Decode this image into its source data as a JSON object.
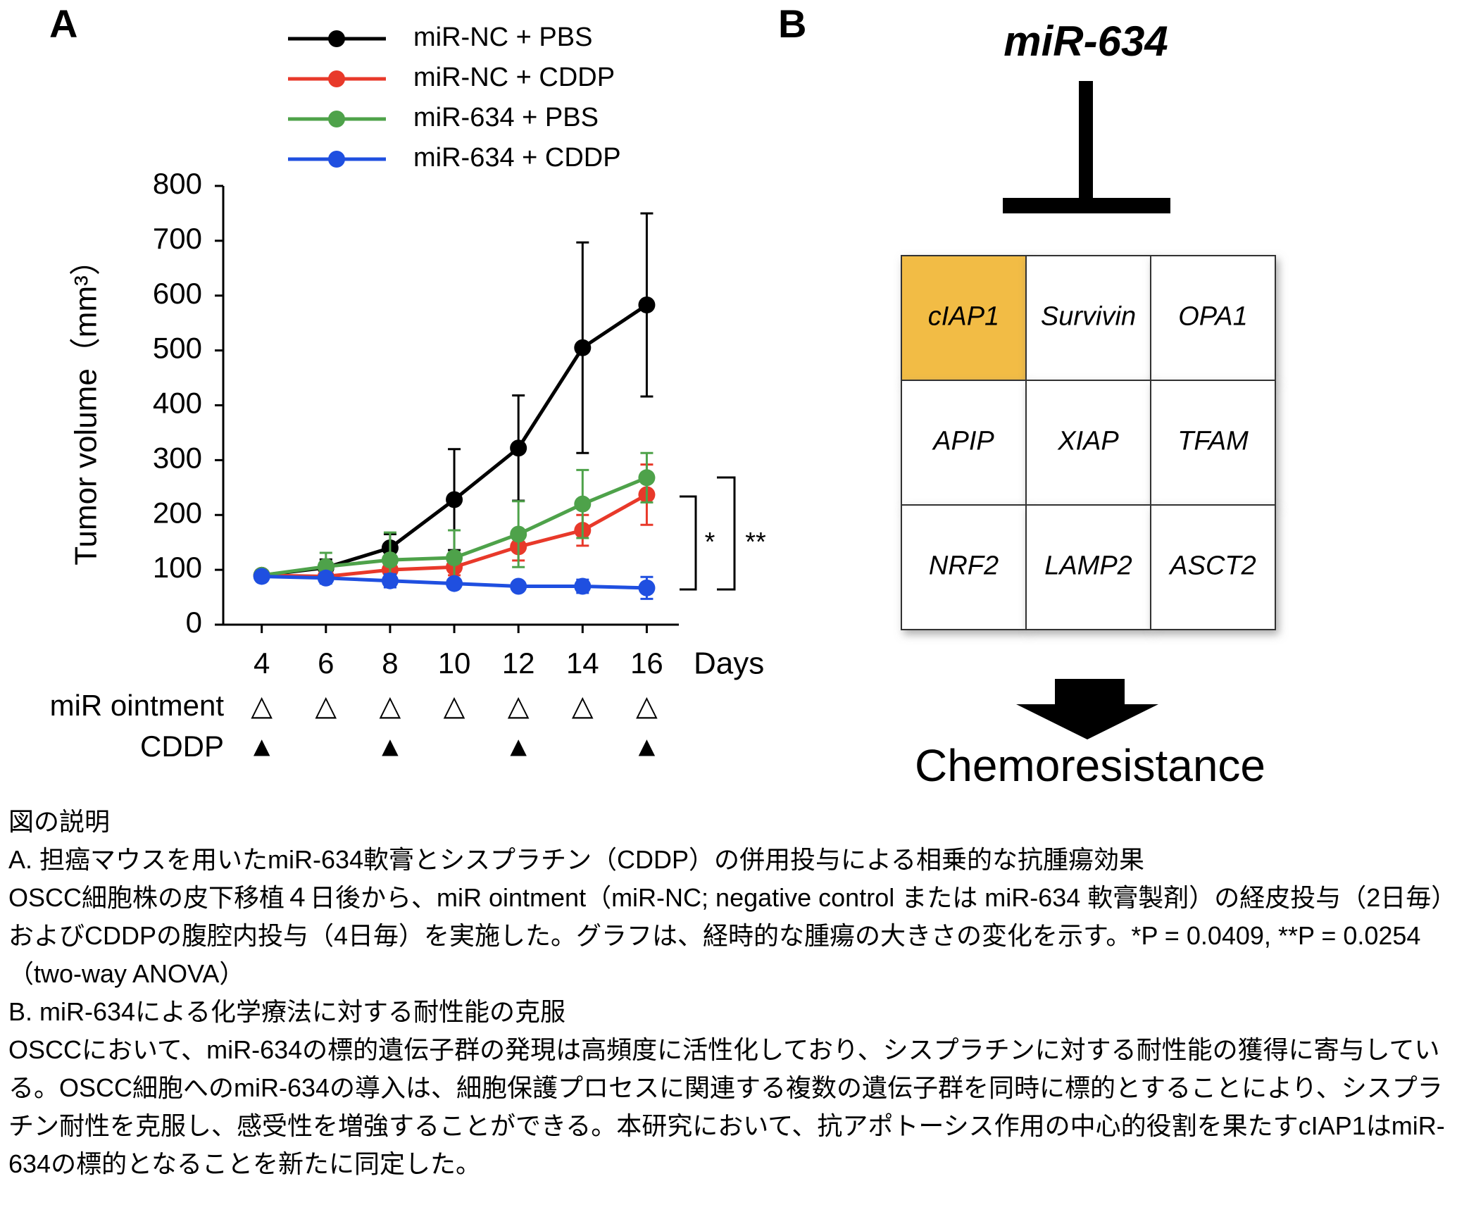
{
  "panels": [
    "A",
    "B"
  ],
  "chart_data": {
    "type": "line",
    "y_label": "Tumor volume（mm³）",
    "x_label": "Days",
    "x": [
      4,
      6,
      8,
      10,
      12,
      14,
      16
    ],
    "xlim": [
      2.8,
      17
    ],
    "xticks": [
      4,
      6,
      8,
      10,
      12,
      14,
      16
    ],
    "ylim": [
      0,
      800
    ],
    "yticks": [
      0,
      100,
      200,
      300,
      400,
      500,
      600,
      700,
      800
    ],
    "series": [
      {
        "name": "miR-NC + PBS",
        "color": "#000000",
        "values": [
          90,
          104,
          140,
          228,
          322,
          505,
          583
        ],
        "errors": [
          5,
          15,
          25,
          92,
          96,
          192,
          167
        ]
      },
      {
        "name": "miR-NC + CDDP",
        "color": "#e8392a",
        "values": [
          90,
          88,
          100,
          105,
          142,
          172,
          237
        ],
        "errors": [
          5,
          10,
          15,
          15,
          25,
          28,
          55
        ]
      },
      {
        "name": "miR-634 + PBS",
        "color": "#4ea24a",
        "values": [
          90,
          106,
          118,
          122,
          165,
          220,
          268
        ],
        "errors": [
          5,
          25,
          50,
          50,
          60,
          62,
          45
        ]
      },
      {
        "name": "miR-634 + CDDP",
        "color": "#1f4fe0",
        "values": [
          88,
          85,
          80,
          75,
          70,
          70,
          67
        ],
        "errors": [
          5,
          10,
          12,
          8,
          8,
          12,
          20
        ]
      }
    ],
    "treatments": [
      {
        "label": "miR ointment",
        "symbol": "△",
        "days": [
          4,
          6,
          8,
          10,
          12,
          14,
          16
        ]
      },
      {
        "label": "CDDP",
        "symbol": "▲",
        "days": [
          4,
          8,
          12,
          16
        ]
      }
    ],
    "annotations": [
      "*",
      "**"
    ]
  },
  "diagram": {
    "title": "miR-634",
    "genes": [
      [
        "cIAP1",
        "Survivin",
        "OPA1"
      ],
      [
        "APIP",
        "XIAP",
        "TFAM"
      ],
      [
        "NRF2",
        "LAMP2",
        "ASCT2"
      ]
    ],
    "highlight": "cIAP1",
    "highlight_color": "#f2bc44",
    "output": "Chemoresistance"
  },
  "caption": {
    "heading": "図の説明",
    "sections": [
      {
        "title": "A. 担癌マウスを用いたmiR-634軟膏とシスプラチン（CDDP）の併用投与による相乗的な抗腫瘍効果",
        "text": "OSCC細胞株の皮下移植４日後から、miR ointment（miR-NC; negative control または miR-634 軟膏製剤）の経皮投与（2日毎）およびCDDPの腹腔内投与（4日毎）を実施した。グラフは、経時的な腫瘍の大きさの変化を示す。*P = 0.0409, **P = 0.0254（two-way ANOVA）"
      },
      {
        "title": "B. miR-634による化学療法に対する耐性能の克服",
        "text": "OSCCにおいて、miR-634の標的遺伝子群の発現は高頻度に活性化しており、シスプラチンに対する耐性能の獲得に寄与している。OSCC細胞へのmiR-634の導入は、細胞保護プロセスに関連する複数の遺伝子群を同時に標的とすることにより、シスプラチン耐性を克服し、感受性を増強することができる。本研究において、抗アポトーシス作用の中心的役割を果たすcIAP1はmiR-634の標的となることを新たに同定した。"
      }
    ]
  }
}
